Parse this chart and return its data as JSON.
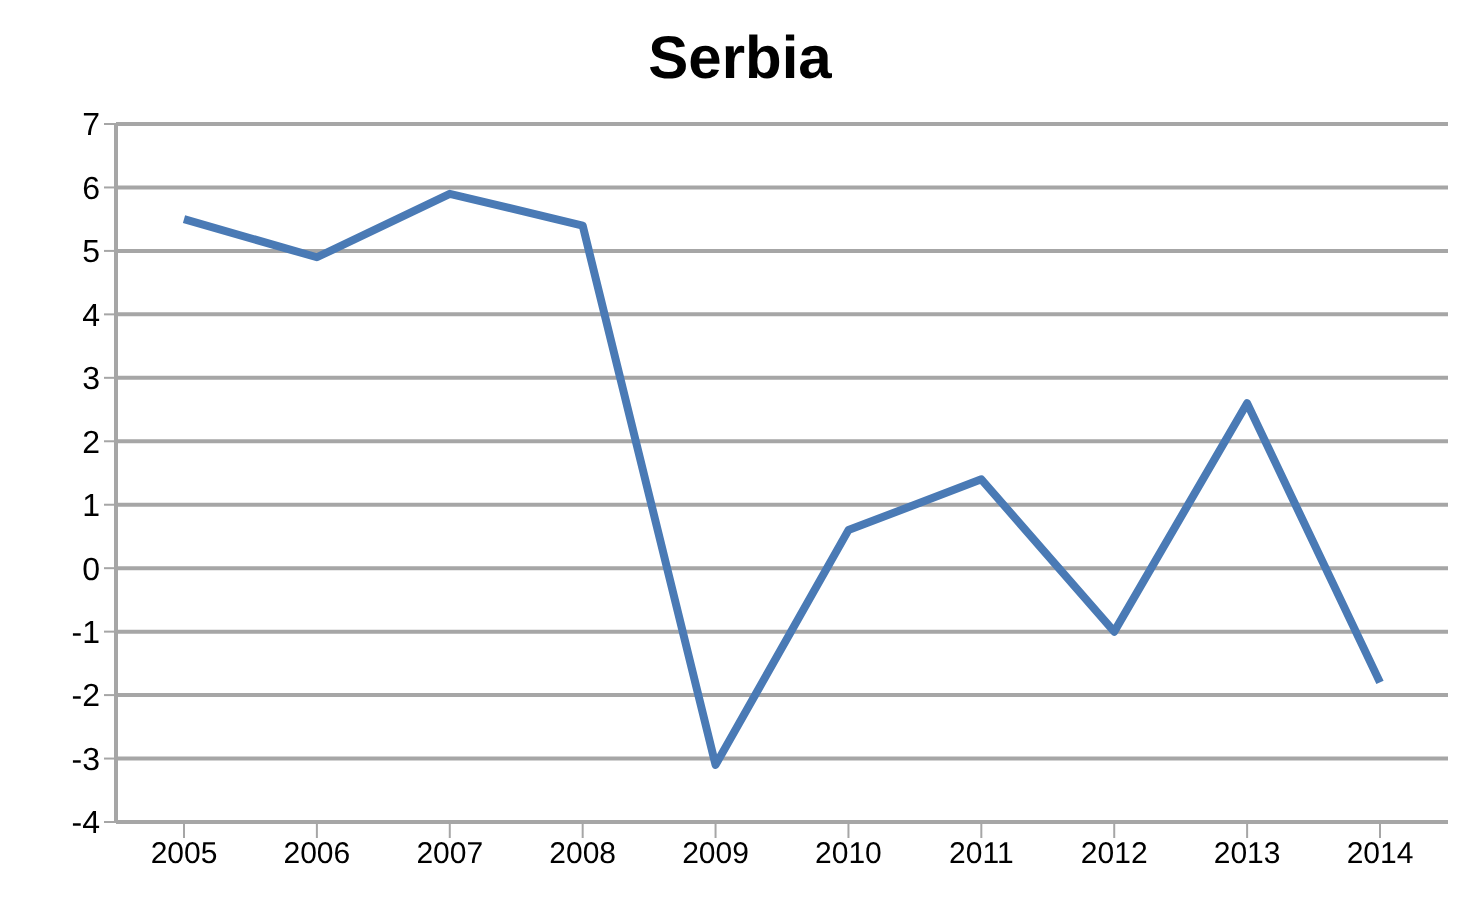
{
  "chart_data": {
    "type": "line",
    "title": "Serbia",
    "categories": [
      "2005",
      "2006",
      "2007",
      "2008",
      "2009",
      "2010",
      "2011",
      "2012",
      "2013",
      "2014"
    ],
    "series": [
      {
        "color": "#4a7ab5",
        "values": [
          5.5,
          4.9,
          5.9,
          5.4,
          -3.1,
          0.6,
          1.4,
          -1.0,
          2.6,
          -1.8
        ]
      }
    ],
    "ylim": [
      -4,
      7
    ],
    "yticks": [
      -4,
      -3,
      -2,
      -1,
      0,
      1,
      2,
      3,
      4,
      5,
      6,
      7
    ],
    "grid": "y",
    "marker": "none",
    "line_style": "solid"
  }
}
